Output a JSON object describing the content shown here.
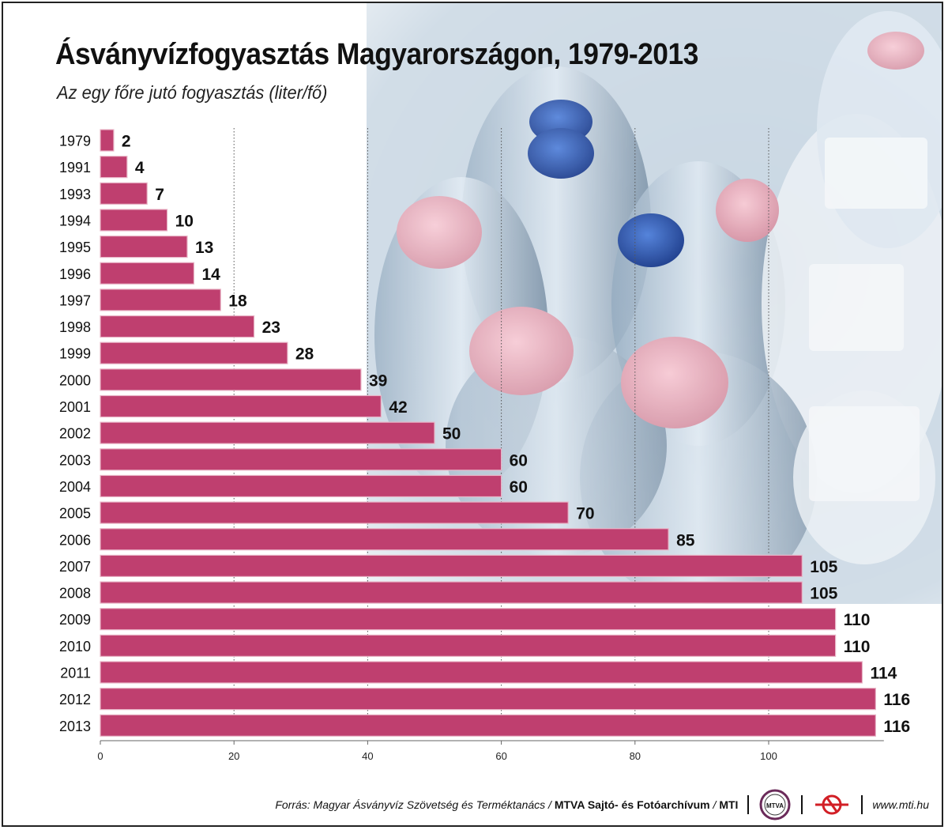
{
  "header": {
    "title": "Ásványvízfogyasztás Magyarországon, 1979-2013",
    "subtitle": "Az egy főre jutó fogyasztás (liter/fő)"
  },
  "footer": {
    "source_prefix": "Forrás: Magyar Ásványvíz Szövetség és Terméktanács /",
    "source_bold": "MTVA Sajtó- és Fotóarchívum",
    "source_suffix": "/",
    "mti": "MTI",
    "url": "www.mti.hu",
    "logo_text": "MTVA"
  },
  "colors": {
    "bar": "#bf3f6f",
    "bar_edge": "#e8b4c6",
    "gridline": "#555555",
    "text": "#111111"
  },
  "chart_data": {
    "type": "bar",
    "orientation": "horizontal",
    "title": "Ásványvízfogyasztás Magyarországon, 1979-2013",
    "subtitle": "Az egy főre jutó fogyasztás (liter/fő)",
    "xlabel": "",
    "ylabel": "",
    "xlim": [
      0,
      117
    ],
    "xticks": [
      0,
      20,
      40,
      60,
      80,
      100
    ],
    "grid": "vertical-dotted",
    "categories": [
      "1979",
      "1991",
      "1993",
      "1994",
      "1995",
      "1996",
      "1997",
      "1998",
      "1999",
      "2000",
      "2001",
      "2002",
      "2003",
      "2004",
      "2005",
      "2006",
      "2007",
      "2008",
      "2009",
      "2010",
      "2011",
      "2012",
      "2013"
    ],
    "values": [
      2,
      4,
      7,
      10,
      13,
      14,
      18,
      23,
      28,
      39,
      42,
      50,
      60,
      60,
      70,
      85,
      105,
      105,
      110,
      110,
      114,
      116,
      116
    ]
  }
}
